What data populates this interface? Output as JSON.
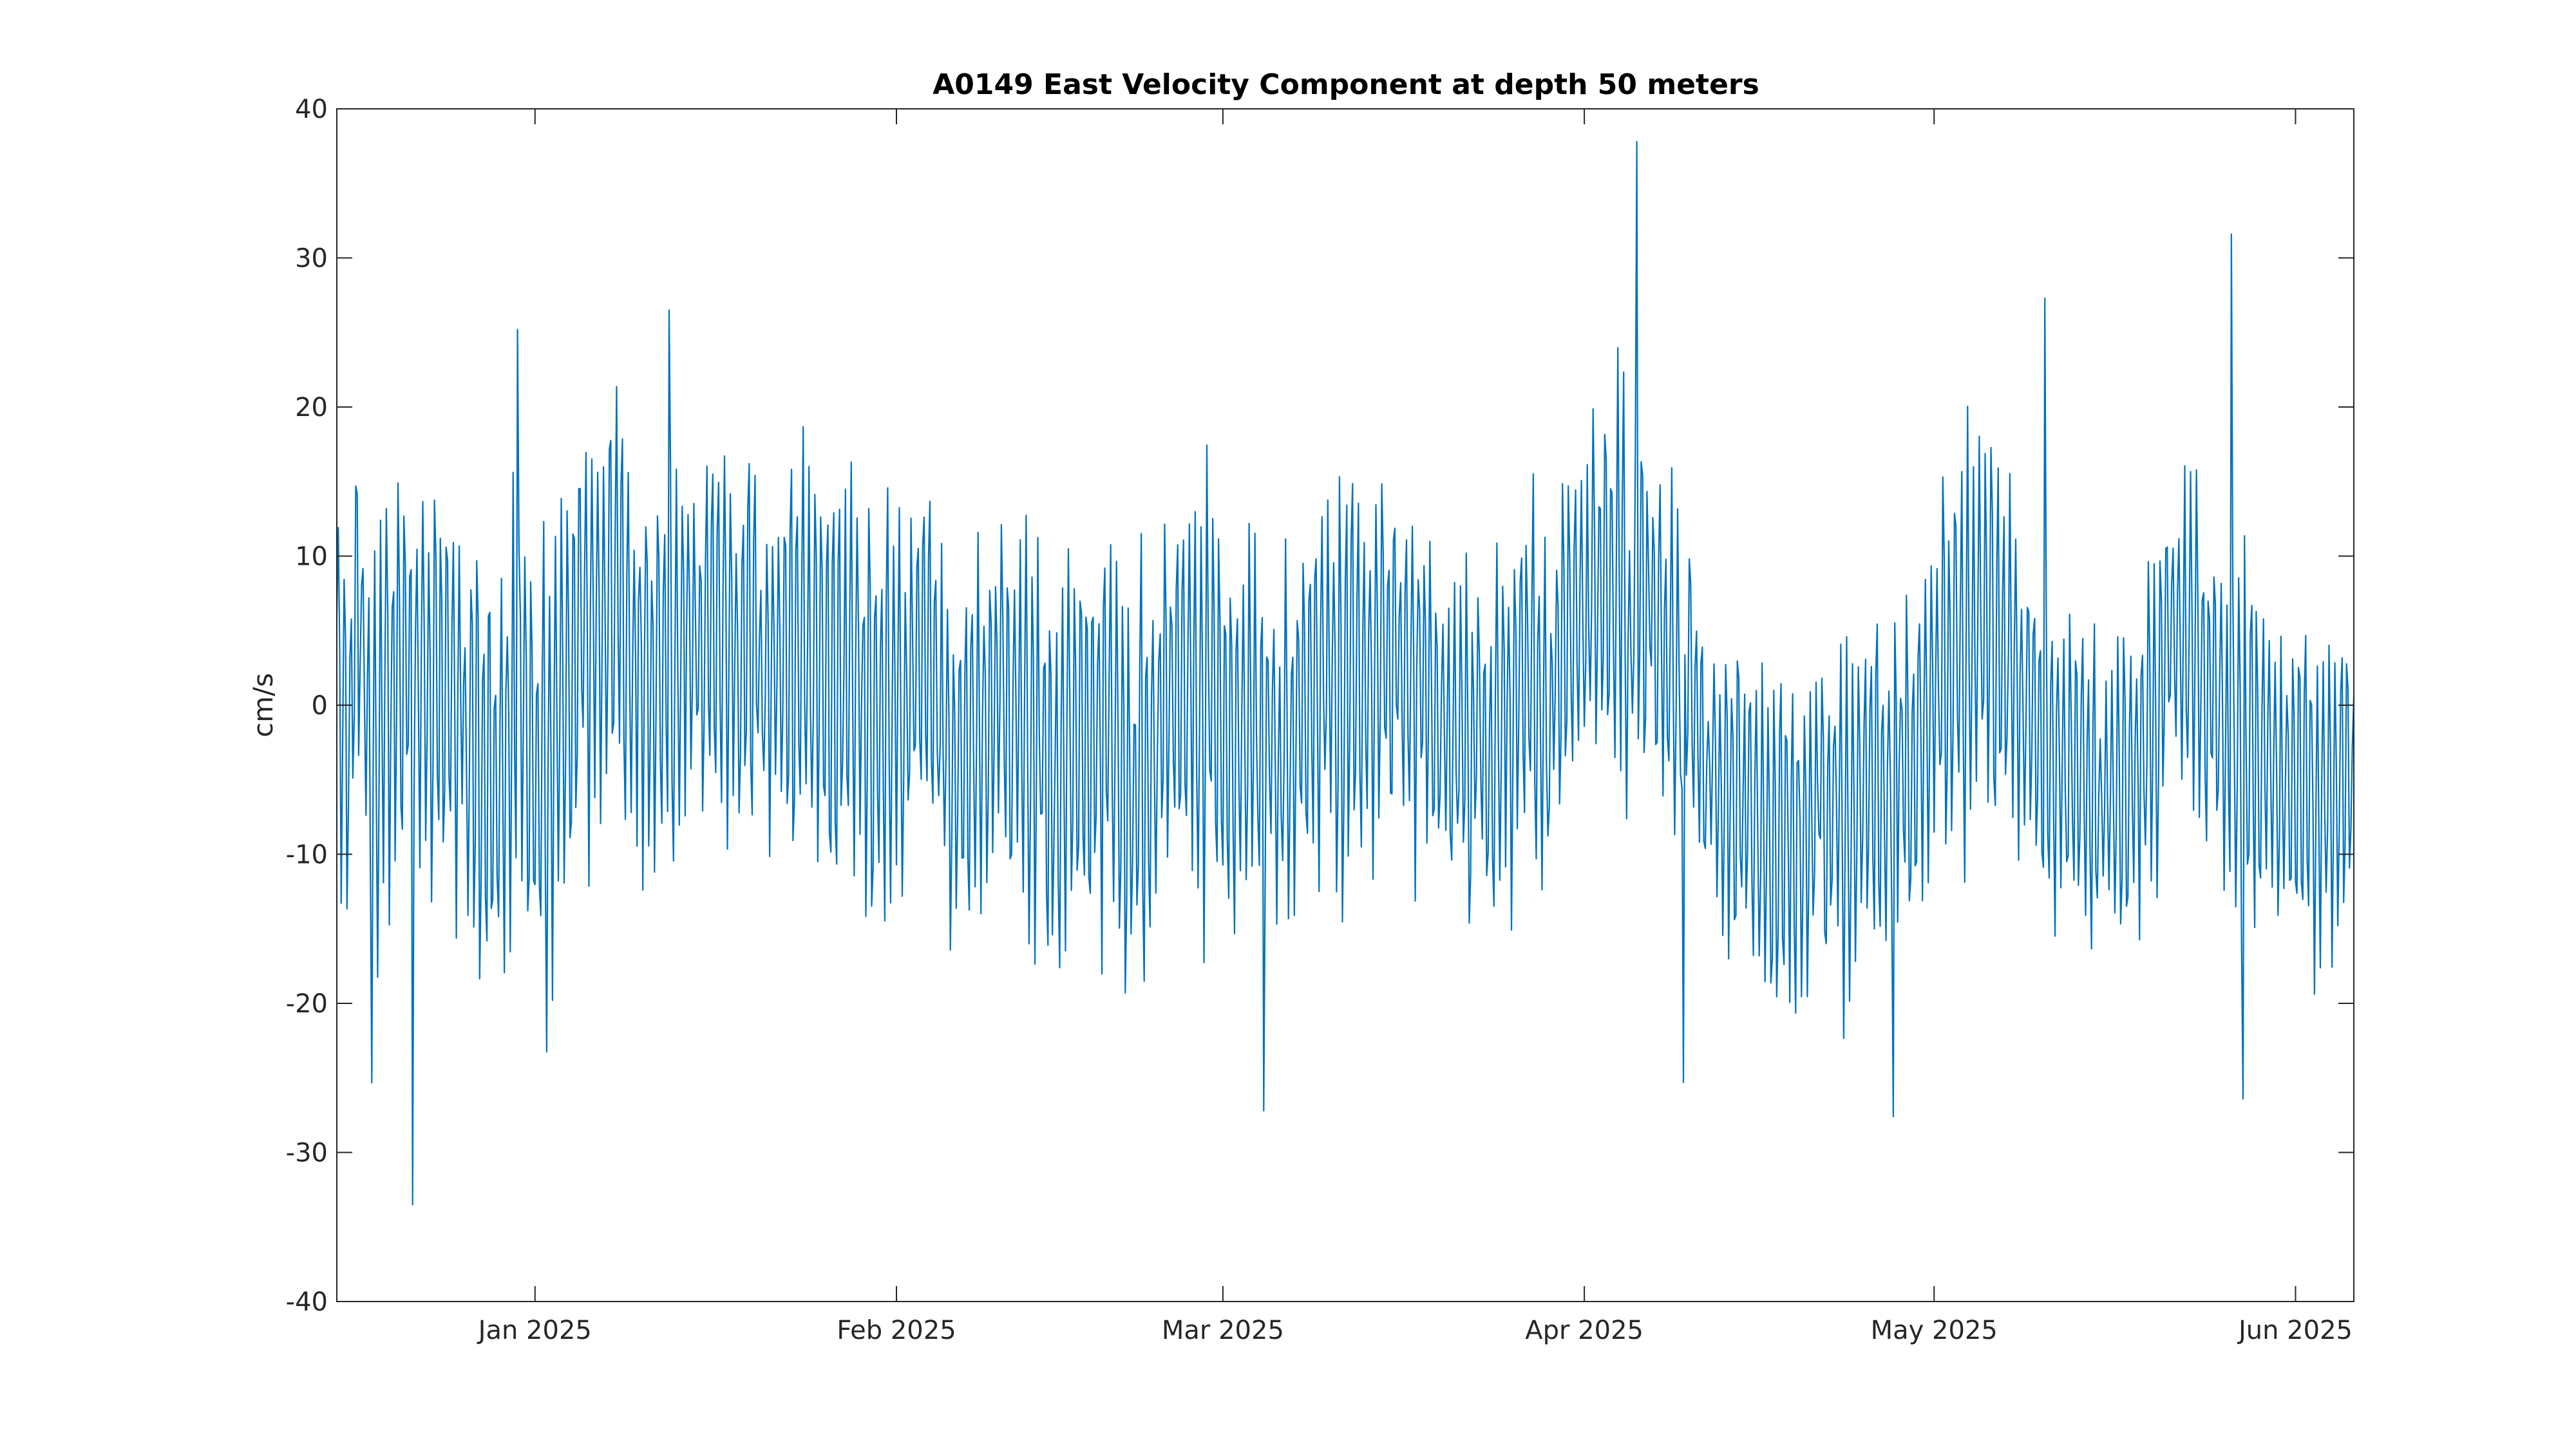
{
  "chart_data": {
    "type": "line",
    "title": "A0149 East Velocity Component at depth 50 meters",
    "xlabel": "",
    "ylabel": "cm/s",
    "x_axis_type": "date",
    "xlim": [
      "2024-12-15",
      "2025-06-06"
    ],
    "ylim": [
      -40,
      40
    ],
    "grid": false,
    "legend": "none",
    "line_color": "#0072BD",
    "x_ticks": [
      {
        "date": "2025-01-01",
        "label": "Jan 2025"
      },
      {
        "date": "2025-02-01",
        "label": "Feb 2025"
      },
      {
        "date": "2025-03-01",
        "label": "Mar 2025"
      },
      {
        "date": "2025-04-01",
        "label": "Apr 2025"
      },
      {
        "date": "2025-05-01",
        "label": "May 2025"
      },
      {
        "date": "2025-06-01",
        "label": "Jun 2025"
      }
    ],
    "y_ticks": [
      40,
      30,
      20,
      10,
      0,
      -10,
      -20,
      -30,
      -40
    ],
    "y_tick_labels": [
      "40",
      "30",
      "20",
      "10",
      "0",
      "-10",
      "-20",
      "-30",
      "-40"
    ],
    "sample_interval_hours": 3,
    "tidal_period_hours": 12.42,
    "series": [
      {
        "x_start": "2024-12-15",
        "x_end": "2025-06-06",
        "daily_mean": [
          3,
          -2,
          6,
          -7,
          2,
          1,
          4,
          2,
          1,
          3,
          0,
          -1,
          -2,
          -6,
          -3,
          -1,
          0,
          -4,
          -3,
          -1,
          2,
          5,
          6,
          7,
          8,
          5,
          3,
          2,
          1,
          3,
          4,
          3,
          6,
          5,
          4,
          3,
          3,
          2,
          1,
          2,
          3,
          4,
          2,
          3,
          1,
          0,
          -2,
          -1,
          0,
          1,
          2,
          1,
          -1,
          -3,
          -2,
          -4,
          -1,
          2,
          0,
          -2,
          -1,
          -5,
          -3,
          -4,
          -3,
          -1,
          -2,
          -4,
          -6,
          -4,
          -3,
          0,
          1,
          2,
          -1,
          2,
          0,
          -1,
          -2,
          -3,
          -2,
          -4,
          -2,
          0,
          1,
          2,
          1,
          3,
          2,
          1,
          4,
          3,
          2,
          1,
          0,
          -1,
          -2,
          -3,
          -2,
          -4,
          -1,
          3,
          2,
          0,
          -2,
          4,
          5,
          6,
          8,
          7,
          9,
          6,
          8,
          5,
          3,
          1,
          0,
          -3,
          -5,
          -6,
          -7,
          -6,
          -8,
          -9,
          -7,
          -8,
          -9,
          -6,
          -6,
          -7,
          -8,
          -6,
          -5,
          -5,
          -4,
          -3,
          -2,
          0,
          1,
          3,
          4,
          6,
          5,
          3,
          1,
          -1,
          -2,
          -3,
          -5,
          -5,
          -4,
          -6,
          -7,
          -6,
          -4,
          -2,
          1,
          3,
          5,
          4,
          2,
          1,
          -1,
          -2,
          -3,
          -4,
          -5,
          -5,
          -4,
          -5,
          -6,
          -6,
          -5,
          -4
        ],
        "daily_amplitude": [
          10,
          12,
          9,
          14,
          11,
          12,
          10,
          13,
          12,
          11,
          12,
          11,
          13,
          12,
          11,
          13,
          12,
          11,
          14,
          12,
          11,
          13,
          12,
          14,
          13,
          11,
          12,
          11,
          10,
          12,
          11,
          10,
          12,
          11,
          12,
          13,
          11,
          10,
          9,
          12,
          13,
          12,
          11,
          12,
          13,
          11,
          12,
          13,
          12,
          11,
          12,
          11,
          12,
          10,
          11,
          12,
          10,
          11,
          12,
          11,
          13,
          12,
          13,
          12,
          12,
          13,
          12,
          11,
          13,
          12,
          11,
          12,
          10,
          11,
          12,
          13,
          12,
          11,
          12,
          11,
          10,
          11,
          12,
          11,
          10,
          11,
          12,
          11,
          12,
          11,
          10,
          11,
          12,
          11,
          10,
          11,
          12,
          11,
          10,
          11,
          10,
          13,
          11,
          12,
          10,
          11,
          12,
          11,
          10,
          11,
          12,
          10,
          11,
          9,
          10,
          11,
          10,
          9,
          8,
          9,
          10,
          9,
          10,
          11,
          10,
          11,
          10,
          9,
          10,
          11,
          10,
          9,
          10,
          11,
          10,
          10,
          10,
          11,
          11,
          12,
          11,
          10,
          12,
          11,
          10,
          9,
          10,
          9,
          8,
          9,
          10,
          9,
          8,
          9,
          10,
          11,
          10,
          9,
          11,
          10,
          11,
          10,
          9,
          10,
          11,
          10,
          9,
          10,
          10,
          9,
          10,
          9,
          10,
          10
        ],
        "extremes": [
          {
            "date": "2024-12-21",
            "value": -33.5
          },
          {
            "date": "2024-12-30",
            "value": 25.2
          },
          {
            "date": "2025-01-12",
            "value": 26.5
          },
          {
            "date": "2025-03-04",
            "value": -27.2
          },
          {
            "date": "2025-04-05",
            "value": 37.8
          },
          {
            "date": "2025-04-09",
            "value": -25.3
          },
          {
            "date": "2025-04-27",
            "value": -27.6
          },
          {
            "date": "2025-05-10",
            "value": 27.3
          },
          {
            "date": "2025-05-26",
            "value": 31.6
          },
          {
            "date": "2025-05-27",
            "value": -26.4
          }
        ]
      }
    ]
  }
}
